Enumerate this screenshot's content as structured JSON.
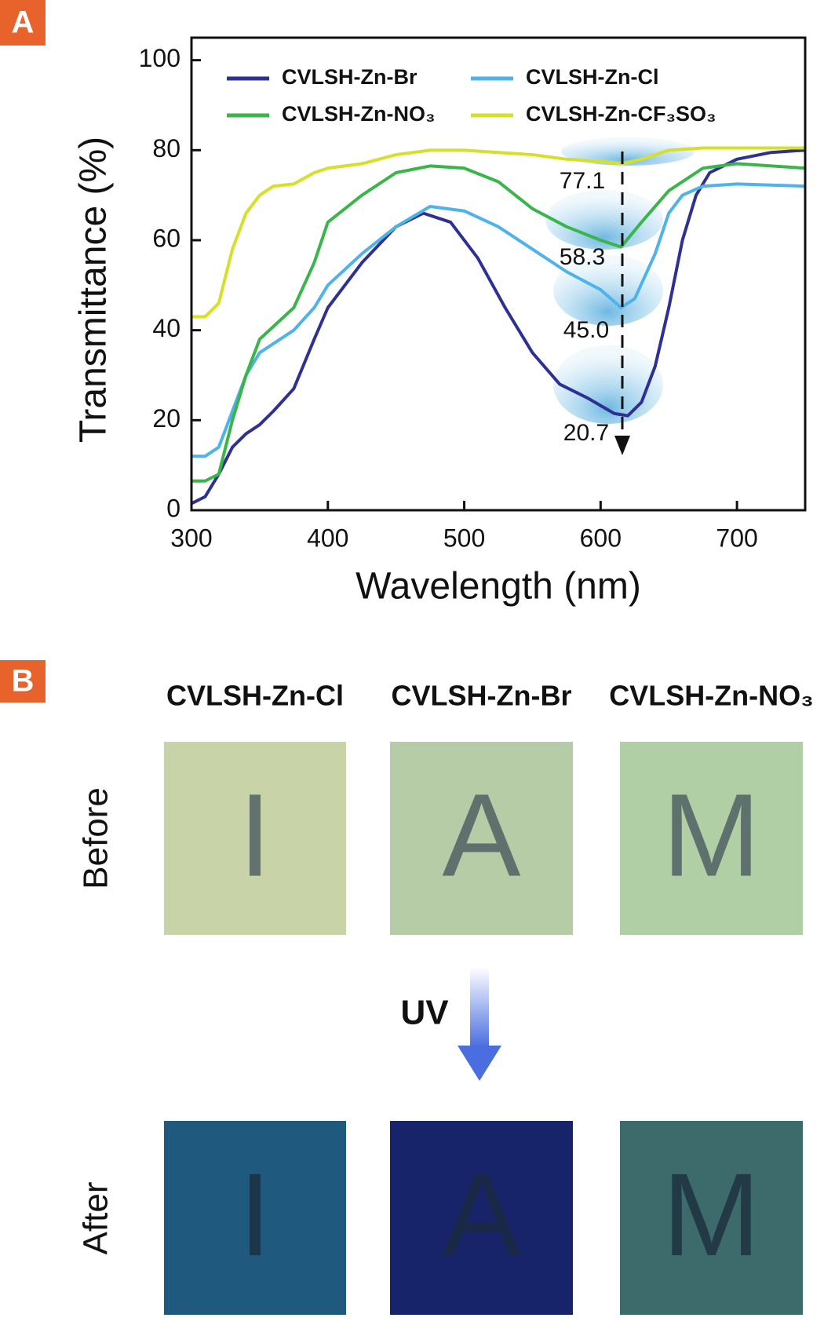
{
  "panel_labels": [
    "A",
    "B"
  ],
  "chart_data": {
    "type": "line",
    "xlabel": "Wavelength (nm)",
    "ylabel": "Transmittance (%)",
    "xlim": [
      300,
      750
    ],
    "ylim": [
      0,
      105
    ],
    "xticks": [
      300,
      400,
      500,
      600,
      700
    ],
    "yticks": [
      0,
      20,
      40,
      60,
      80,
      100
    ],
    "legend": "top",
    "series": [
      {
        "name": "CVLSH-Zn-Br",
        "color": "#2e3192",
        "x": [
          300,
          310,
          320,
          330,
          340,
          350,
          360,
          375,
          390,
          400,
          425,
          450,
          470,
          490,
          510,
          530,
          550,
          570,
          590,
          610,
          620,
          630,
          640,
          650,
          660,
          670,
          680,
          700,
          725,
          750
        ],
        "values": [
          1.5,
          3,
          8,
          14,
          17,
          19,
          22,
          27,
          38,
          45,
          55,
          63,
          66,
          64,
          56,
          45,
          35,
          28,
          25,
          21.5,
          21,
          24,
          32,
          45,
          60,
          70,
          75,
          78,
          79.5,
          80
        ]
      },
      {
        "name": "CVLSH-Zn-Cl",
        "color": "#4db3e8",
        "x": [
          300,
          310,
          320,
          330,
          340,
          350,
          375,
          390,
          400,
          425,
          450,
          475,
          500,
          525,
          550,
          575,
          600,
          615,
          625,
          640,
          650,
          660,
          675,
          700,
          750
        ],
        "values": [
          12,
          12,
          14,
          22,
          30,
          35,
          40,
          45,
          50,
          57,
          63,
          67.5,
          66.5,
          63,
          58,
          53,
          49,
          45,
          47,
          57,
          66,
          70,
          72,
          72.5,
          72
        ]
      },
      {
        "name": "CVLSH-Zn-NO₃",
        "color": "#3ab54a",
        "x": [
          300,
          310,
          320,
          330,
          340,
          350,
          375,
          390,
          400,
          425,
          450,
          475,
          500,
          525,
          550,
          575,
          600,
          615,
          630,
          650,
          675,
          700,
          750
        ],
        "values": [
          6.5,
          6.5,
          8,
          20,
          30,
          38,
          45,
          55,
          64,
          70,
          75,
          76.5,
          76,
          73,
          67,
          63,
          60,
          58.5,
          64,
          71,
          76,
          77,
          76
        ]
      },
      {
        "name": "CVLSH-Zn-CF₃SO₃",
        "color": "#d4e029",
        "x": [
          300,
          310,
          320,
          330,
          340,
          350,
          360,
          375,
          390,
          400,
          425,
          450,
          475,
          500,
          525,
          550,
          575,
          600,
          615,
          630,
          650,
          675,
          700,
          750
        ],
        "values": [
          43,
          43,
          46,
          58,
          66,
          70,
          72,
          72.5,
          75,
          76,
          77,
          79,
          80,
          80,
          79.5,
          79,
          78,
          77.5,
          77,
          78,
          80,
          80.5,
          80.5,
          80.5
        ]
      }
    ],
    "annotations": [
      "77.1",
      "58.3",
      "45.0",
      "20.7"
    ]
  },
  "panel_b": {
    "columns": [
      "CVLSH-Zn-Cl",
      "CVLSH-Zn-Br",
      "CVLSH-Zn-NO₃"
    ],
    "rows": [
      "Before",
      "After"
    ],
    "arrow_label": "UV",
    "letters": [
      "I",
      "A",
      "M"
    ]
  }
}
